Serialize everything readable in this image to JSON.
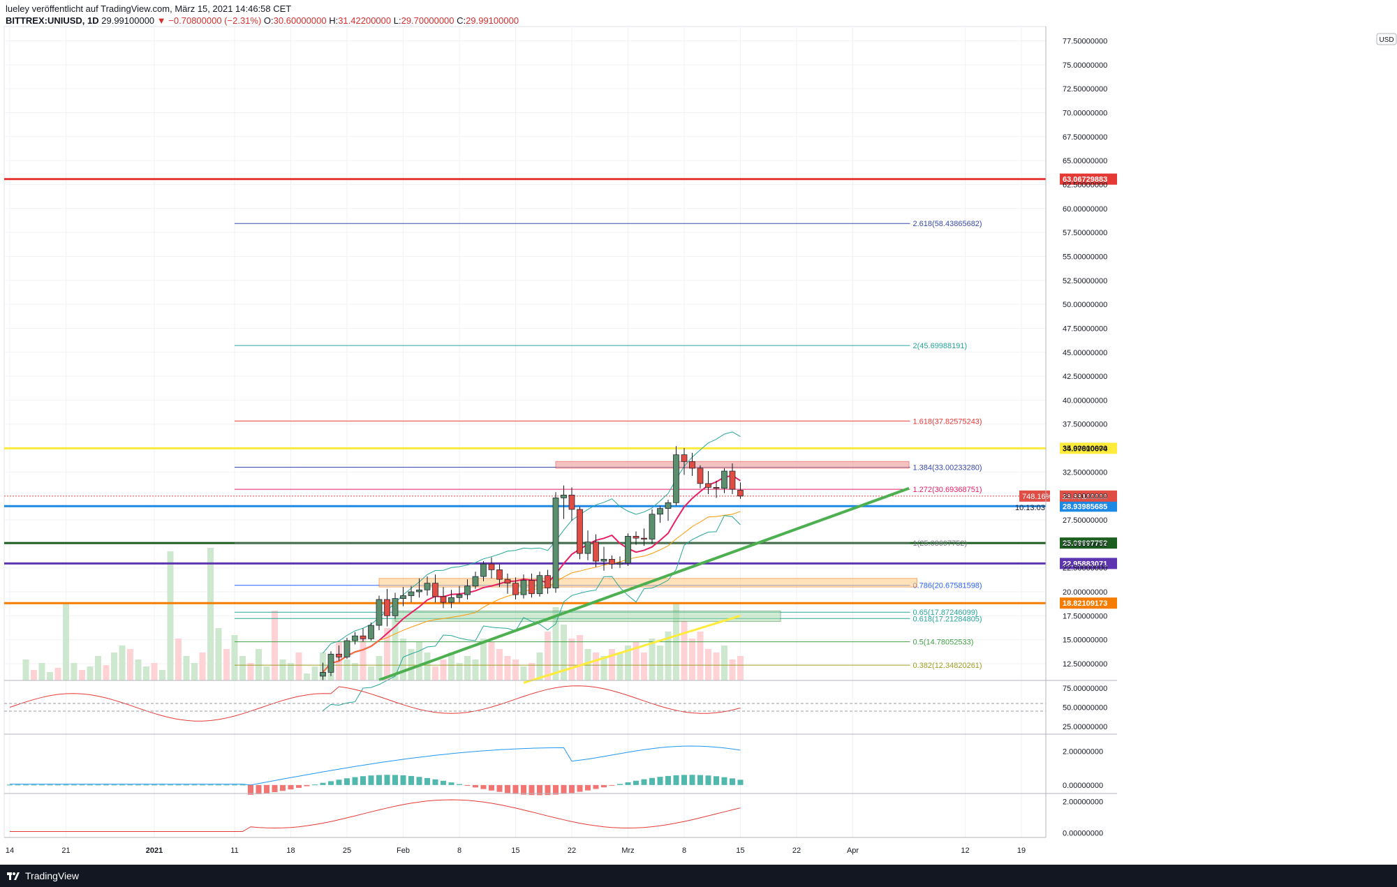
{
  "header": {
    "line1": "lueley veröffentlicht auf TradingView.com, März 15, 2021 14:46:58 CET",
    "symbol": "BITTREX:UNIUSD, 1D",
    "last": "29.99100000",
    "change": "−0.70800000 (−2.31%)",
    "o_label": "O:",
    "o_value": "30.60000000",
    "h_label": "H:",
    "h_value": "31.42200000",
    "l_label": "L:",
    "l_value": "29.70000000",
    "c_label": "C:",
    "c_value": "29.99100000"
  },
  "footer": {
    "brand": "TradingView"
  },
  "currency_badge": "USD",
  "colors": {
    "up": "#5b8f6e",
    "down": "#e04d45",
    "red_line": "#e53935",
    "yellow_line": "#ffeb3b",
    "blue_line": "#1e88e5",
    "green_dark": "#1b5e20",
    "purple": "#5e35b1",
    "orange": "#f57c00",
    "trend": "#4caf50"
  },
  "chart_data": {
    "type": "candlestick",
    "symbol": "BITTREX:UNIUSD",
    "interval": "1D",
    "price_axis_ticks": [
      "77.50000000",
      "75.00000000",
      "72.50000000",
      "70.00000000",
      "67.50000000",
      "65.00000000",
      "62.50000000",
      "60.00000000",
      "57.50000000",
      "55.00000000",
      "52.50000000",
      "50.00000000",
      "47.50000000",
      "45.00000000",
      "42.50000000",
      "40.00000000",
      "37.50000000",
      "35.00000000",
      "32.50000000",
      "30.00000000",
      "27.50000000",
      "25.00000000",
      "22.50000000",
      "20.00000000",
      "17.50000000",
      "15.00000000",
      "12.50000000"
    ],
    "time_axis_ticks": [
      "14",
      "21",
      "2021",
      "11",
      "18",
      "25",
      "Feb",
      "8",
      "15",
      "22",
      "Mrz",
      "8",
      "15",
      "22",
      "Apr",
      "12",
      "19"
    ],
    "horizontal_levels": [
      {
        "price": 63.06729883,
        "label": "63.06729883",
        "color": "#e53935"
      },
      {
        "price": 34.97810674,
        "label": "34.97810674",
        "color": "#ffeb3b"
      },
      {
        "price": 28.93985685,
        "label": "28.93985685",
        "color": "#1e88e5"
      },
      {
        "price": 25.08697752,
        "label": "25.08697752",
        "color": "#1b5e20"
      },
      {
        "price": 22.95883071,
        "label": "22.95883071",
        "color": "#5e35b1"
      },
      {
        "price": 18.82109173,
        "label": "18.82109173",
        "color": "#f57c00"
      }
    ],
    "last_price_label": "29.99100000",
    "last_price_pct": "748.16%",
    "countdown": "10:13:03",
    "fib_levels": [
      {
        "level": "2.618",
        "price": 58.43865682,
        "text": "2.618(58.43865682)",
        "color": "#3949ab"
      },
      {
        "level": "2",
        "price": 45.69988191,
        "text": "2(45.69988191)",
        "color": "#26a69a"
      },
      {
        "level": "1.618",
        "price": 37.82575243,
        "text": "1.618(37.82575243)",
        "color": "#e53935"
      },
      {
        "level": "1.384",
        "price": 33.0023328,
        "text": "1.384(33.00233280)",
        "color": "#3949ab"
      },
      {
        "level": "1.272",
        "price": 30.69368751,
        "text": "1.272(30.69368751)",
        "color": "#e91e63"
      },
      {
        "level": "1",
        "price": 25.08697752,
        "text": "1(25.08697752)",
        "color": "#787b86"
      },
      {
        "level": "0.786",
        "price": 20.67581598,
        "text": "0.786(20.67581598)",
        "color": "#2962ff"
      },
      {
        "level": "0.65",
        "price": 17.87246099,
        "text": "0.65(17.87246099)",
        "color": "#26a69a"
      },
      {
        "level": "0.618",
        "price": 17.21284805,
        "text": "0.618(17.21284805)",
        "color": "#26a69a"
      },
      {
        "level": "0.5",
        "price": 14.78052533,
        "text": "0.5(14.78052533)",
        "color": "#43a047"
      },
      {
        "level": "0.382",
        "price": 12.34820261,
        "text": "0.382(12.34820261)",
        "color": "#9e9d24"
      }
    ],
    "rsi_ticks": [
      "75.00000000",
      "50.00000000",
      "25.00000000"
    ],
    "macd_ticks": [
      "2.00000000",
      "0.00000000"
    ],
    "osc_ticks": [
      "2.00000000",
      "0.00000000"
    ],
    "candles": [
      {
        "o": 11.2,
        "h": 12.6,
        "l": 10.8,
        "c": 11.6
      },
      {
        "o": 11.6,
        "h": 13.8,
        "l": 11.2,
        "c": 13.5
      },
      {
        "o": 13.5,
        "h": 14.4,
        "l": 12.8,
        "c": 13.2
      },
      {
        "o": 13.2,
        "h": 15.2,
        "l": 13.0,
        "c": 14.9
      },
      {
        "o": 14.9,
        "h": 15.8,
        "l": 14.5,
        "c": 15.4
      },
      {
        "o": 15.4,
        "h": 16.2,
        "l": 14.8,
        "c": 15.1
      },
      {
        "o": 15.1,
        "h": 16.8,
        "l": 14.9,
        "c": 16.5
      },
      {
        "o": 16.5,
        "h": 19.6,
        "l": 16.0,
        "c": 19.2
      },
      {
        "o": 19.2,
        "h": 20.3,
        "l": 16.4,
        "c": 17.5
      },
      {
        "o": 17.5,
        "h": 19.9,
        "l": 17.2,
        "c": 19.3
      },
      {
        "o": 19.3,
        "h": 20.5,
        "l": 18.5,
        "c": 19.6
      },
      {
        "o": 19.6,
        "h": 20.6,
        "l": 18.9,
        "c": 20.0
      },
      {
        "o": 20.0,
        "h": 21.4,
        "l": 19.4,
        "c": 20.2
      },
      {
        "o": 20.2,
        "h": 21.6,
        "l": 19.6,
        "c": 20.9
      },
      {
        "o": 20.9,
        "h": 21.8,
        "l": 18.9,
        "c": 19.5
      },
      {
        "o": 19.5,
        "h": 20.5,
        "l": 18.3,
        "c": 18.9
      },
      {
        "o": 18.9,
        "h": 20.2,
        "l": 18.3,
        "c": 19.4
      },
      {
        "o": 19.4,
        "h": 20.6,
        "l": 18.9,
        "c": 19.7
      },
      {
        "o": 19.7,
        "h": 21.3,
        "l": 19.2,
        "c": 20.6
      },
      {
        "o": 20.6,
        "h": 22.1,
        "l": 20.3,
        "c": 21.6
      },
      {
        "o": 21.6,
        "h": 23.2,
        "l": 21.1,
        "c": 22.9
      },
      {
        "o": 22.9,
        "h": 23.6,
        "l": 21.4,
        "c": 22.3
      },
      {
        "o": 22.3,
        "h": 22.9,
        "l": 20.5,
        "c": 21.3
      },
      {
        "o": 21.3,
        "h": 21.9,
        "l": 19.8,
        "c": 20.9
      },
      {
        "o": 20.9,
        "h": 21.5,
        "l": 19.2,
        "c": 19.7
      },
      {
        "o": 19.7,
        "h": 21.8,
        "l": 19.3,
        "c": 21.2
      },
      {
        "o": 21.2,
        "h": 21.9,
        "l": 19.4,
        "c": 19.8
      },
      {
        "o": 19.8,
        "h": 22.1,
        "l": 19.5,
        "c": 21.7
      },
      {
        "o": 21.7,
        "h": 22.3,
        "l": 19.8,
        "c": 20.4
      },
      {
        "o": 20.4,
        "h": 30.4,
        "l": 19.9,
        "c": 29.8
      },
      {
        "o": 29.8,
        "h": 31.1,
        "l": 27.6,
        "c": 30.1
      },
      {
        "o": 30.1,
        "h": 30.9,
        "l": 27.4,
        "c": 28.6
      },
      {
        "o": 28.6,
        "h": 28.9,
        "l": 23.4,
        "c": 24.0
      },
      {
        "o": 24.0,
        "h": 26.4,
        "l": 23.3,
        "c": 25.2
      },
      {
        "o": 25.2,
        "h": 26.0,
        "l": 22.6,
        "c": 23.2
      },
      {
        "o": 23.2,
        "h": 24.7,
        "l": 22.2,
        "c": 23.4
      },
      {
        "o": 23.4,
        "h": 23.8,
        "l": 22.4,
        "c": 22.9
      },
      {
        "o": 22.9,
        "h": 23.7,
        "l": 22.5,
        "c": 23.0
      },
      {
        "o": 23.0,
        "h": 26.1,
        "l": 22.7,
        "c": 25.8
      },
      {
        "o": 25.8,
        "h": 26.3,
        "l": 24.9,
        "c": 25.6
      },
      {
        "o": 25.6,
        "h": 26.6,
        "l": 24.8,
        "c": 25.5
      },
      {
        "o": 25.5,
        "h": 28.6,
        "l": 25.0,
        "c": 28.1
      },
      {
        "o": 28.1,
        "h": 29.0,
        "l": 27.2,
        "c": 28.7
      },
      {
        "o": 28.7,
        "h": 29.6,
        "l": 27.4,
        "c": 29.3
      },
      {
        "o": 29.3,
        "h": 35.2,
        "l": 29.0,
        "c": 34.3
      },
      {
        "o": 34.3,
        "h": 35.0,
        "l": 32.2,
        "c": 33.6
      },
      {
        "o": 33.6,
        "h": 34.5,
        "l": 32.1,
        "c": 32.9
      },
      {
        "o": 32.9,
        "h": 33.2,
        "l": 30.8,
        "c": 31.3
      },
      {
        "o": 31.3,
        "h": 32.6,
        "l": 30.2,
        "c": 30.9
      },
      {
        "o": 30.9,
        "h": 31.6,
        "l": 29.8,
        "c": 30.8
      },
      {
        "o": 30.8,
        "h": 32.9,
        "l": 30.3,
        "c": 32.6
      },
      {
        "o": 32.6,
        "h": 33.4,
        "l": 30.2,
        "c": 30.7
      },
      {
        "o": 30.6,
        "h": 31.42,
        "l": 29.7,
        "c": 29.991
      }
    ]
  }
}
